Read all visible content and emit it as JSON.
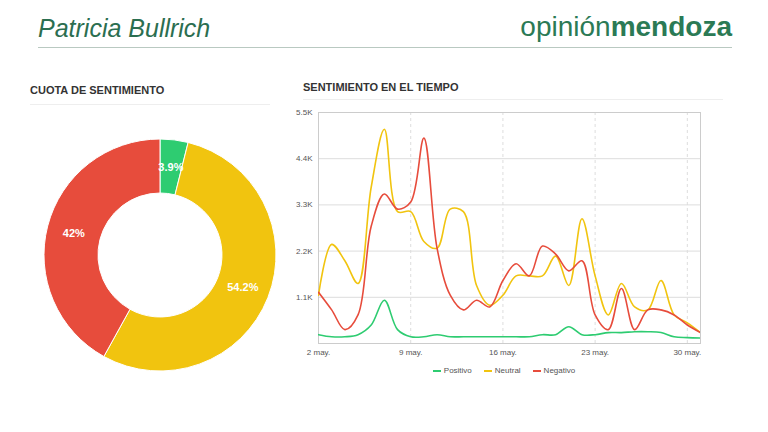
{
  "header": {
    "title": "Patricia Bullrich",
    "brand_light": "opinión",
    "brand_bold": "mendoza"
  },
  "chart_data": [
    {
      "type": "pie",
      "title": "CUOTA DE SENTIMIENTO",
      "values": [
        3.9,
        54.2,
        42
      ],
      "value_labels": [
        "3.9%",
        "54.2%",
        "42%"
      ],
      "colors": [
        "#2ecc71",
        "#f1c40f",
        "#e74c3c"
      ],
      "data_labels": true
    },
    {
      "type": "line",
      "title": "SENTIMIENTO EN EL TIEMPO",
      "x": [
        2,
        3,
        4,
        5,
        6,
        7,
        8,
        9,
        10,
        11,
        12,
        13,
        14,
        15,
        16,
        17,
        18,
        19,
        20,
        21,
        22,
        23,
        24,
        25,
        26,
        27,
        28,
        29,
        30,
        31
      ],
      "xlim": [
        2,
        31
      ],
      "xticks": [
        {
          "value": 2,
          "label": "2 may."
        },
        {
          "value": 9,
          "label": "9 may."
        },
        {
          "value": 16,
          "label": "16 may."
        },
        {
          "value": 23,
          "label": "23 may."
        },
        {
          "value": 30,
          "label": "30 may."
        }
      ],
      "ylim": [
        0,
        5500
      ],
      "yticks": [
        {
          "value": 1100,
          "label": "1.1K"
        },
        {
          "value": 2200,
          "label": "2.2K"
        },
        {
          "value": 3300,
          "label": "3.3K"
        },
        {
          "value": 4400,
          "label": "4.4K"
        },
        {
          "value": 5500,
          "label": "5.5K"
        }
      ],
      "grid": true,
      "legend": "bottom",
      "series": [
        {
          "name": "Positivo",
          "color": "#2ecc71",
          "values": [
            210,
            160,
            160,
            210,
            440,
            1030,
            330,
            160,
            160,
            210,
            160,
            160,
            160,
            160,
            160,
            160,
            160,
            210,
            210,
            400,
            210,
            210,
            260,
            260,
            280,
            280,
            260,
            160,
            140,
            130
          ]
        },
        {
          "name": "Neutral",
          "color": "#f1c40f",
          "values": [
            1150,
            2360,
            1970,
            1430,
            3720,
            5100,
            3140,
            3140,
            2430,
            2270,
            3200,
            3140,
            1380,
            910,
            1150,
            1610,
            1610,
            1610,
            2080,
            1380,
            2970,
            1610,
            680,
            1430,
            870,
            800,
            1500,
            680,
            490,
            260
          ]
        },
        {
          "name": "Negativo",
          "color": "#e74c3c",
          "values": [
            1220,
            800,
            330,
            680,
            2790,
            3560,
            3200,
            3370,
            4890,
            2270,
            1150,
            800,
            1030,
            870,
            1500,
            1900,
            1610,
            2320,
            2130,
            1730,
            1970,
            680,
            330,
            1310,
            330,
            800,
            800,
            680,
            440,
            260
          ]
        }
      ]
    }
  ]
}
